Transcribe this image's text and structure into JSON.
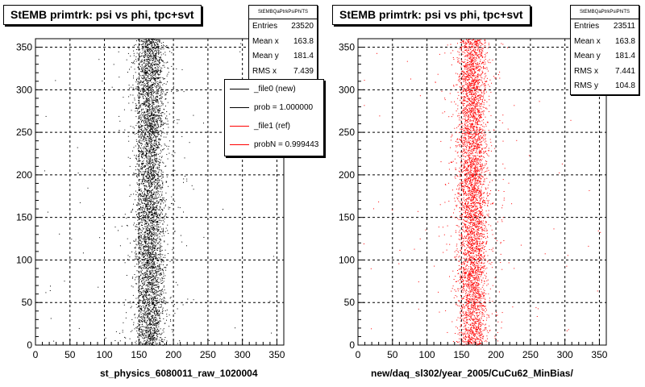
{
  "chart_data": [
    {
      "type": "scatter",
      "title": "StEMB primtrk: psi vs phi, tpc+svt",
      "xlabel": "st_physics_6080011_raw_1020004",
      "ylabel": "",
      "xlim": [
        0,
        360
      ],
      "ylim": [
        0,
        360
      ],
      "xticks": [
        "0",
        "50",
        "100",
        "150",
        "200",
        "250",
        "300",
        "350"
      ],
      "yticks": [
        "0",
        "50",
        "100",
        "150",
        "200",
        "250",
        "300",
        "350"
      ],
      "grid": true,
      "marker_color": "#000000",
      "band": {
        "center_x": 166,
        "width_x": 24,
        "y_range": [
          0,
          360
        ]
      },
      "stats": {
        "name": "StEMBQaPtrkPsiPhiTS",
        "rows": [
          {
            "label": "Entries",
            "value": "23520"
          },
          {
            "label": "Mean x",
            "value": "163.8"
          },
          {
            "label": "Mean y",
            "value": "181.4"
          },
          {
            "label": "RMS x",
            "value": "7.439"
          }
        ]
      },
      "legend": {
        "placement": "right",
        "entries": [
          {
            "label": "_file0 (new)",
            "color": "#000000"
          },
          {
            "label": "prob = 1.000000",
            "color": "#000000"
          },
          {
            "label": "_file1 (ref)",
            "color": "#ff0000"
          },
          {
            "label": "probN = 0.999443",
            "color": "#ff0000"
          }
        ]
      }
    },
    {
      "type": "scatter",
      "title": "StEMB primtrk: psi vs phi, tpc+svt",
      "xlabel": "new/daq_sl302/year_2005/CuCu62_MinBias/",
      "ylabel": "",
      "xlim": [
        0,
        360
      ],
      "ylim": [
        0,
        360
      ],
      "xticks": [
        "0",
        "50",
        "100",
        "150",
        "200",
        "250",
        "300",
        "350"
      ],
      "yticks": [
        "0",
        "50",
        "100",
        "150",
        "200",
        "250",
        "300",
        "350"
      ],
      "grid": true,
      "marker_color": "#ff0000",
      "band": {
        "center_x": 166,
        "width_x": 24,
        "y_range": [
          0,
          360
        ]
      },
      "stats": {
        "name": "StEMBQaPtrkPsiPhiTS",
        "rows": [
          {
            "label": "Entries",
            "value": "23511"
          },
          {
            "label": "Mean x",
            "value": "163.8"
          },
          {
            "label": "Mean y",
            "value": "181.4"
          },
          {
            "label": "RMS x",
            "value": "7.441"
          },
          {
            "label": "RMS y",
            "value": "104.8"
          }
        ]
      }
    }
  ]
}
